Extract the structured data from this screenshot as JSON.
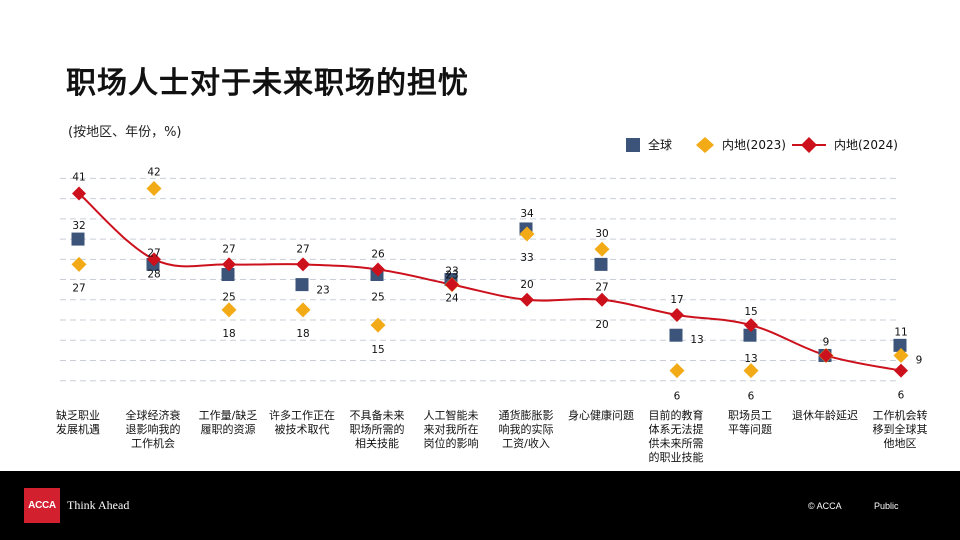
{
  "title": "职场人士对于未来职场的担忧",
  "subtitle": "(按地区、年份，%)",
  "legend": [
    {
      "name": "全球",
      "color": "#3c5479",
      "marker": "square"
    },
    {
      "name": "内地(2023)",
      "color": "#f2aa17",
      "marker": "diamond"
    },
    {
      "name": "内地(2024)",
      "color": "#cc111d",
      "marker": "diamond-line"
    }
  ],
  "chart_data": {
    "type": "line",
    "title": "职场人士对于未来职场的担忧",
    "subtitle": "(按地区、年份，%)",
    "categories": [
      "缺乏职业\n发展机遇",
      "全球经济衰\n退影响我的\n工作机会",
      "工作量/缺乏\n履职的资源",
      "许多工作正在\n被技术取代",
      "不具备未来\n职场所需的\n相关技能",
      "人工智能未\n来对我所在\n岗位的影响",
      "通货膨胀影\n响我的实际\n工资/收入",
      "身心健康问题",
      "目前的教育\n体系无法提\n供未来所需\n的职业技能",
      "职场员工\n平等问题",
      "退休年龄延迟",
      "工作机会转\n移到全球其\n他地区"
    ],
    "series": [
      {
        "name": "全球",
        "type": "scatter",
        "marker": "square",
        "color": "#3c5479",
        "values": [
          32,
          27,
          25,
          23,
          25,
          24,
          34,
          27,
          13,
          13,
          9,
          11
        ]
      },
      {
        "name": "内地(2023)",
        "type": "scatter",
        "marker": "diamond",
        "color": "#f2aa17",
        "values": [
          27,
          42,
          18,
          18,
          15,
          23,
          33,
          30,
          6,
          6,
          9,
          9
        ]
      },
      {
        "name": "内地(2024)",
        "type": "line",
        "marker": "diamond",
        "color": "#cc111d",
        "values": [
          41,
          28,
          27,
          27,
          26,
          23,
          20,
          20,
          17,
          15,
          9,
          6
        ]
      }
    ],
    "ylim": [
      0,
      45
    ],
    "grid": true,
    "legend_position": "top-right"
  },
  "footer": {
    "logo": "ACCA",
    "tagline": "Think Ahead",
    "copyright": "© ACCA",
    "classification": "Public"
  }
}
